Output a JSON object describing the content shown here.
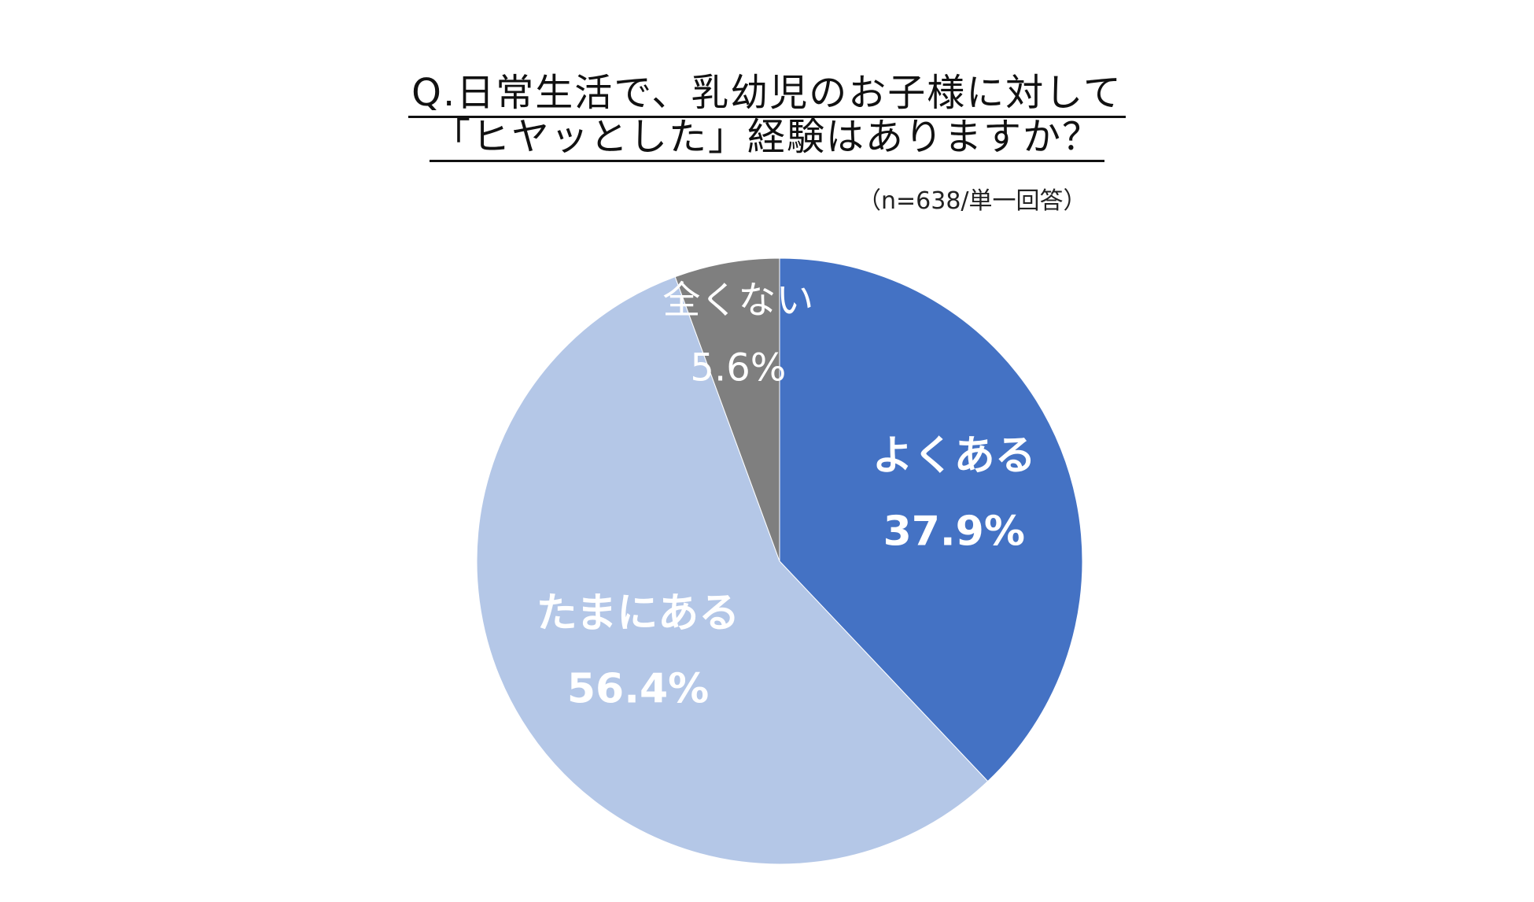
{
  "header": {
    "title_line_1": "Q.日常生活で、乳幼児のお子様に対して",
    "title_line_2": "「ヒヤッとした」経験はありますか？",
    "sample_note": "（n=638/単一回答）"
  },
  "chart_data": {
    "type": "pie",
    "title": "Q.日常生活で、乳幼児のお子様に対して「ヒヤッとした」経験はありますか？",
    "unit": "%",
    "start_angle": "12 o'clock",
    "direction": "clockwise",
    "legend": "none (labels inside slices)",
    "slices": [
      {
        "label": "よくある",
        "value": 37.9,
        "display": "37.9%",
        "color": "#4472C4",
        "label_color": "#FFFFFF",
        "label_weight": "bold"
      },
      {
        "label": "たまにある",
        "value": 56.4,
        "display": "56.4%",
        "color": "#B4C7E7",
        "label_color": "#FFFFFF",
        "label_weight": "bold"
      },
      {
        "label": "全くない",
        "value": 5.6,
        "display": "5.6%",
        "color": "#7F7F7F",
        "label_color": "#FFFFFF",
        "label_weight": "normal"
      }
    ]
  }
}
